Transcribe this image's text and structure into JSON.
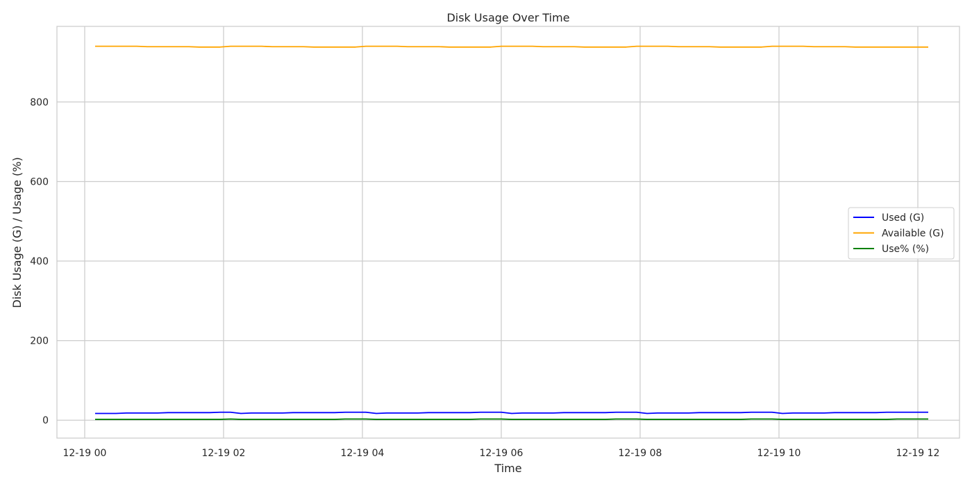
{
  "chart_data": {
    "type": "line",
    "title": "Disk Usage Over Time",
    "xlabel": "Time",
    "ylabel": "Disk Usage (G) / Usage (%)",
    "x_ticks": [
      "12-19 00",
      "12-19 02",
      "12-19 04",
      "12-19 06",
      "12-19 08",
      "12-19 10",
      "12-19 12"
    ],
    "x_tick_hours": [
      0,
      2,
      4,
      6,
      8,
      10,
      12
    ],
    "x_range_hours": [
      -0.4,
      12.6
    ],
    "y_ticks": [
      0,
      200,
      400,
      600,
      800
    ],
    "ylim": [
      -45,
      990
    ],
    "grid": true,
    "legend_position": "center-right",
    "x_hours": [
      0.15,
      0.3,
      0.45,
      0.6,
      0.75,
      0.9,
      1.05,
      1.2,
      1.35,
      1.5,
      1.65,
      1.8,
      1.95,
      2.1,
      2.25,
      2.4,
      2.55,
      2.7,
      2.85,
      3.0,
      3.15,
      3.3,
      3.45,
      3.6,
      3.75,
      3.9,
      4.05,
      4.2,
      4.35,
      4.5,
      4.65,
      4.8,
      4.95,
      5.1,
      5.25,
      5.4,
      5.55,
      5.7,
      5.85,
      6.0,
      6.15,
      6.3,
      6.45,
      6.6,
      6.75,
      6.9,
      7.05,
      7.2,
      7.35,
      7.5,
      7.65,
      7.8,
      7.95,
      8.1,
      8.25,
      8.4,
      8.55,
      8.7,
      8.85,
      9.0,
      9.15,
      9.3,
      9.45,
      9.6,
      9.75,
      9.9,
      10.05,
      10.2,
      10.35,
      10.5,
      10.65,
      10.8,
      10.95,
      11.1,
      11.25,
      11.4,
      11.55,
      11.7,
      11.85,
      12.0,
      12.15
    ],
    "series": [
      {
        "name": "Used (G)",
        "color": "#0000ff",
        "values": [
          17,
          17,
          17,
          18,
          18,
          18,
          18,
          19,
          19,
          19,
          19,
          19,
          20,
          20,
          17,
          18,
          18,
          18,
          18,
          19,
          19,
          19,
          19,
          19,
          20,
          20,
          20,
          17,
          18,
          18,
          18,
          18,
          19,
          19,
          19,
          19,
          19,
          20,
          20,
          20,
          17,
          18,
          18,
          18,
          18,
          19,
          19,
          19,
          19,
          19,
          20,
          20,
          20,
          17,
          18,
          18,
          18,
          18,
          19,
          19,
          19,
          19,
          19,
          20,
          20,
          20,
          17,
          18,
          18,
          18,
          18,
          19,
          19,
          19,
          19,
          19,
          20,
          20,
          20,
          20,
          20
        ]
      },
      {
        "name": "Available (G)",
        "color": "#ffa500",
        "values": [
          940,
          940,
          940,
          940,
          940,
          939,
          939,
          939,
          939,
          939,
          938,
          938,
          938,
          940,
          940,
          940,
          940,
          939,
          939,
          939,
          939,
          938,
          938,
          938,
          938,
          938,
          940,
          940,
          940,
          940,
          939,
          939,
          939,
          939,
          938,
          938,
          938,
          938,
          938,
          940,
          940,
          940,
          940,
          939,
          939,
          939,
          939,
          938,
          938,
          938,
          938,
          938,
          940,
          940,
          940,
          940,
          939,
          939,
          939,
          939,
          938,
          938,
          938,
          938,
          938,
          940,
          940,
          940,
          940,
          939,
          939,
          939,
          939,
          938,
          938,
          938,
          938,
          938,
          938,
          938,
          938
        ]
      },
      {
        "name": "Use% (%)",
        "color": "#008000",
        "values": [
          2,
          2,
          2,
          2,
          2,
          2,
          2,
          2,
          2,
          2,
          2,
          2,
          2,
          3,
          2,
          2,
          2,
          2,
          2,
          2,
          2,
          2,
          2,
          2,
          3,
          3,
          3,
          2,
          2,
          2,
          2,
          2,
          2,
          2,
          2,
          2,
          2,
          3,
          3,
          3,
          2,
          2,
          2,
          2,
          2,
          2,
          2,
          2,
          2,
          2,
          3,
          3,
          3,
          2,
          2,
          2,
          2,
          2,
          2,
          2,
          2,
          2,
          2,
          3,
          3,
          3,
          2,
          2,
          2,
          2,
          2,
          2,
          2,
          2,
          2,
          2,
          2,
          3,
          3,
          3,
          3
        ]
      }
    ]
  }
}
